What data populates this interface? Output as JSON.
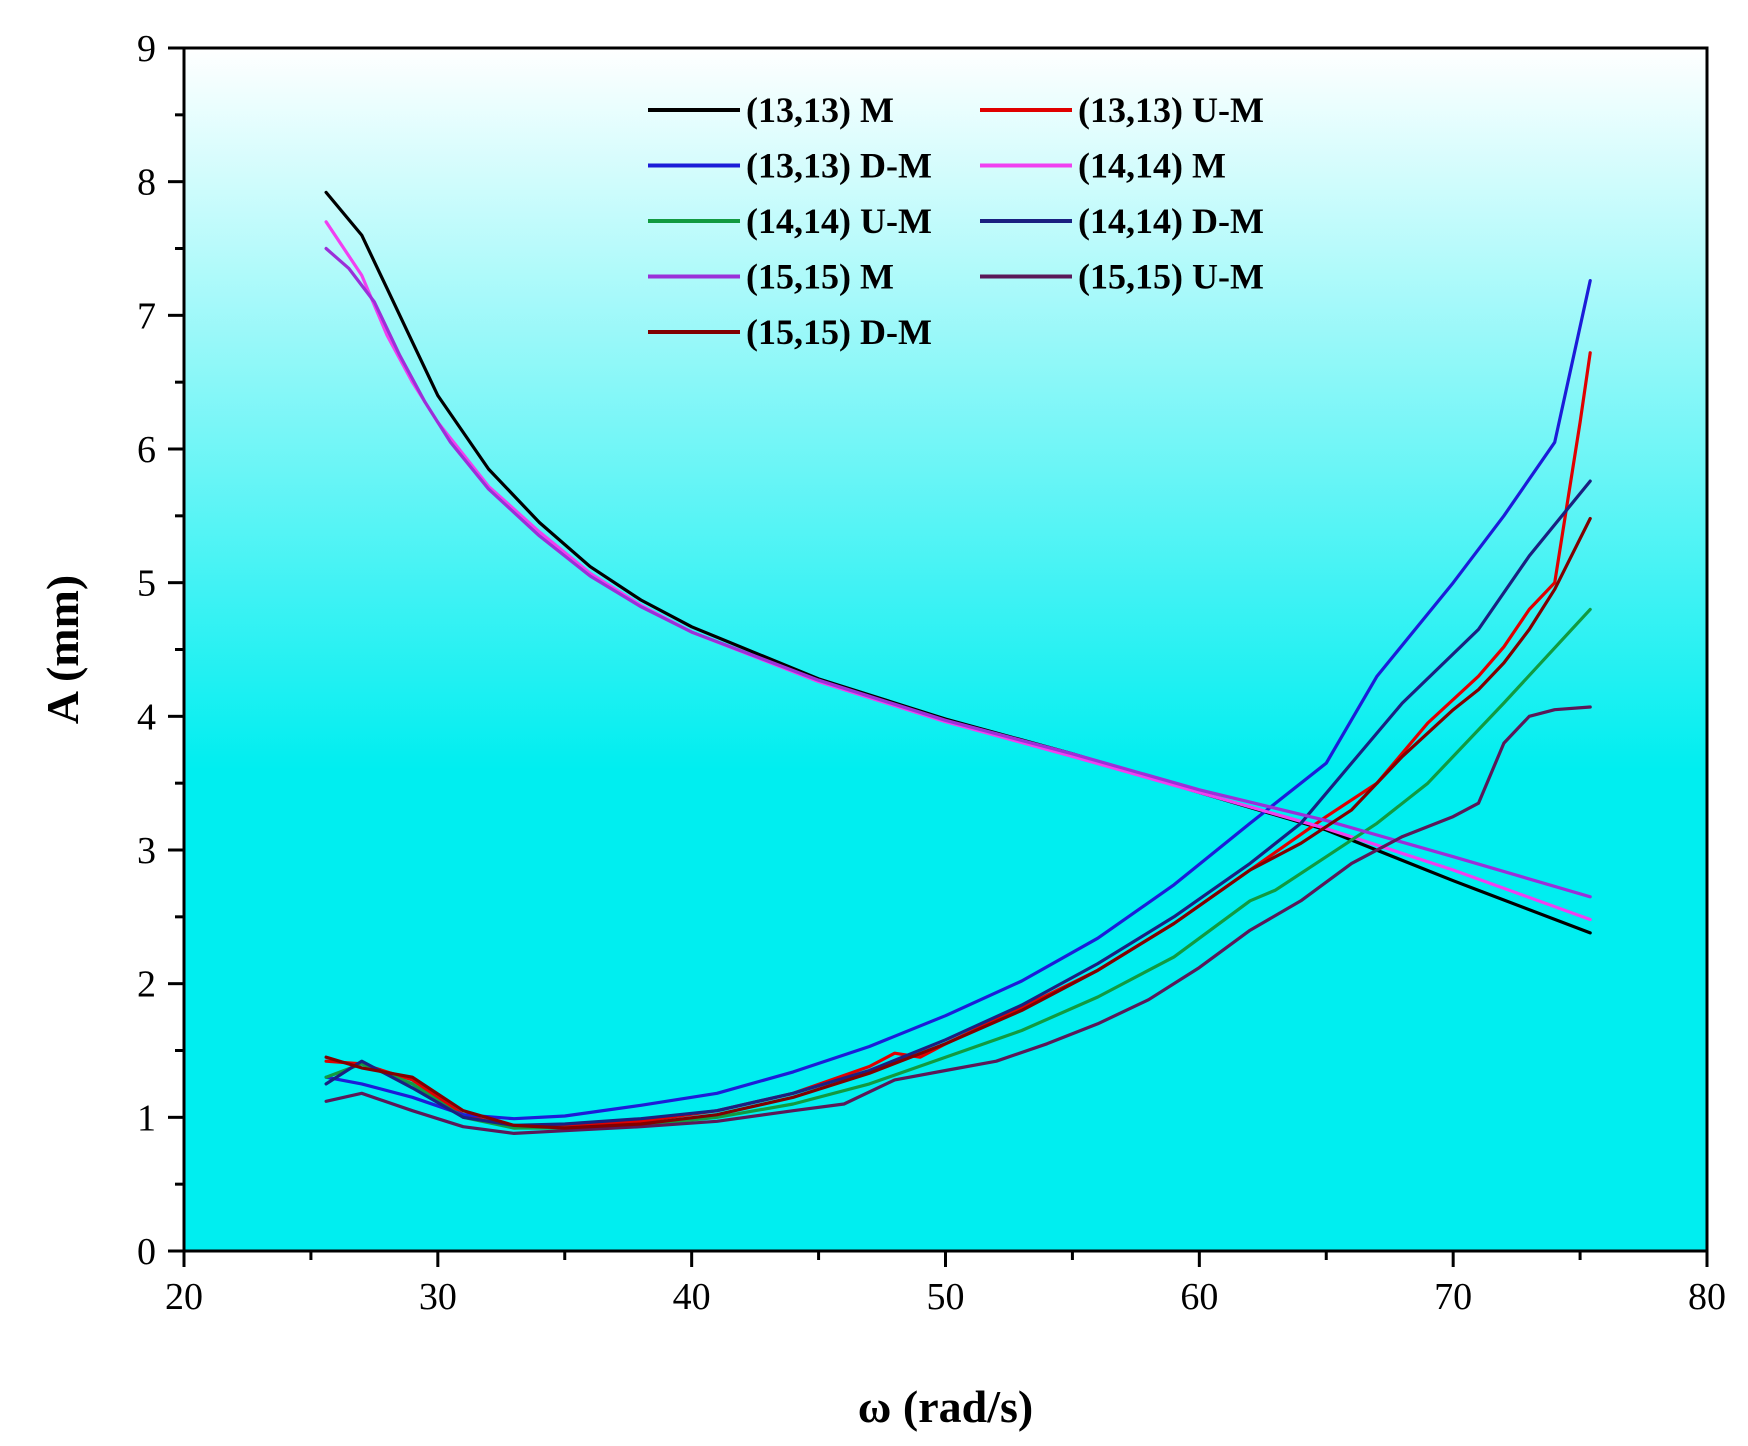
{
  "chart_data": {
    "type": "line",
    "title": "",
    "xlabel": "ω (rad/s)",
    "ylabel": "A (mm)",
    "xlim": [
      20,
      80
    ],
    "ylim": [
      0,
      9
    ],
    "xticks": [
      20,
      30,
      40,
      50,
      60,
      70,
      80
    ],
    "yticks": [
      0,
      1,
      2,
      3,
      4,
      5,
      6,
      7,
      8,
      9
    ],
    "x_minor_step": 5,
    "y_minor_step": 0.5,
    "grid": false,
    "legend_position": "top-center",
    "background_gradient": [
      "#ffffff",
      "#00eef0"
    ],
    "series": [
      {
        "name": "(13,13) M",
        "color": "#000000",
        "x": [
          25.6,
          27,
          28,
          29,
          30,
          32,
          34,
          36,
          38,
          40,
          45,
          50,
          55,
          60,
          65,
          70,
          75.4
        ],
        "y": [
          7.92,
          7.6,
          7.2,
          6.8,
          6.4,
          5.85,
          5.45,
          5.12,
          4.87,
          4.67,
          4.28,
          3.98,
          3.72,
          3.43,
          3.15,
          2.77,
          2.38
        ]
      },
      {
        "name": "(13,13) U-M",
        "color": "#e00000",
        "x": [
          25.6,
          27,
          29,
          31,
          33,
          35,
          38,
          41,
          44,
          47,
          48,
          49,
          50,
          53,
          56,
          59,
          62,
          65,
          67,
          69,
          71,
          72,
          73,
          74,
          75,
          75.4
        ],
        "y": [
          1.42,
          1.4,
          1.28,
          1.02,
          0.92,
          0.93,
          0.97,
          1.05,
          1.18,
          1.38,
          1.48,
          1.45,
          1.55,
          1.82,
          2.1,
          2.45,
          2.85,
          3.25,
          3.5,
          3.95,
          4.3,
          4.52,
          4.8,
          5.0,
          6.2,
          6.72
        ]
      },
      {
        "name": "(13,13) D-M",
        "color": "#1c1cd8",
        "x": [
          25.6,
          27,
          29,
          31,
          33,
          35,
          38,
          41,
          44,
          47,
          50,
          53,
          56,
          59,
          62,
          65,
          67,
          70,
          72,
          74,
          75.4
        ],
        "y": [
          1.3,
          1.25,
          1.15,
          1.02,
          0.99,
          1.01,
          1.09,
          1.18,
          1.34,
          1.53,
          1.76,
          2.02,
          2.34,
          2.74,
          3.2,
          3.65,
          4.3,
          5.0,
          5.5,
          6.05,
          7.26
        ]
      },
      {
        "name": "(14,14) M",
        "color": "#f040f0",
        "x": [
          25.6,
          27,
          28,
          29,
          30,
          32,
          34,
          36,
          38,
          40,
          45,
          50,
          55,
          60,
          65,
          70,
          75.4
        ],
        "y": [
          7.7,
          7.3,
          6.85,
          6.5,
          6.2,
          5.72,
          5.38,
          5.07,
          4.83,
          4.63,
          4.26,
          3.96,
          3.7,
          3.43,
          3.16,
          2.85,
          2.48
        ]
      },
      {
        "name": "(14,14) U-M",
        "color": "#129a40",
        "x": [
          25.6,
          27,
          29,
          31,
          33,
          35,
          38,
          41,
          44,
          47,
          50,
          53,
          56,
          59,
          62,
          63,
          65,
          67,
          69,
          72,
          75.4
        ],
        "y": [
          1.3,
          1.4,
          1.25,
          1.0,
          0.92,
          0.92,
          0.94,
          1.0,
          1.1,
          1.25,
          1.45,
          1.65,
          1.9,
          2.2,
          2.62,
          2.7,
          2.95,
          3.2,
          3.5,
          4.1,
          4.8
        ]
      },
      {
        "name": "(14,14) D-M",
        "color": "#1a2080",
        "x": [
          25.6,
          27,
          29,
          31,
          33,
          35,
          38,
          41,
          44,
          47,
          50,
          53,
          56,
          59,
          62,
          64,
          66,
          68,
          71,
          73,
          75.4
        ],
        "y": [
          1.25,
          1.42,
          1.22,
          1.0,
          0.94,
          0.95,
          0.99,
          1.05,
          1.18,
          1.35,
          1.58,
          1.84,
          2.15,
          2.5,
          2.9,
          3.2,
          3.65,
          4.1,
          4.65,
          5.2,
          5.76
        ]
      },
      {
        "name": "(15,15) M",
        "color": "#9a30d8",
        "x": [
          25.6,
          26.5,
          27.5,
          28.5,
          29.5,
          30.5,
          32,
          34,
          36,
          38,
          40,
          45,
          50,
          55,
          60,
          65,
          70,
          75.4
        ],
        "y": [
          7.5,
          7.35,
          7.1,
          6.7,
          6.35,
          6.05,
          5.7,
          5.35,
          5.05,
          4.82,
          4.63,
          4.27,
          3.97,
          3.72,
          3.45,
          3.22,
          2.95,
          2.65
        ]
      },
      {
        "name": "(15,15) U-M",
        "color": "#5a1858",
        "x": [
          25.6,
          27,
          29,
          31,
          33,
          35,
          38,
          41,
          44,
          46,
          48,
          50,
          52,
          54,
          56,
          58,
          60,
          62,
          64,
          66,
          68,
          70,
          71,
          72,
          73,
          74,
          75.4
        ],
        "y": [
          1.12,
          1.18,
          1.05,
          0.93,
          0.88,
          0.9,
          0.93,
          0.97,
          1.05,
          1.1,
          1.28,
          1.35,
          1.42,
          1.55,
          1.7,
          1.88,
          2.12,
          2.4,
          2.62,
          2.9,
          3.1,
          3.25,
          3.35,
          3.8,
          4.0,
          4.05,
          4.07
        ]
      },
      {
        "name": "(15,15) D-M",
        "color": "#800000",
        "x": [
          25.6,
          27,
          29,
          31,
          33,
          35,
          38,
          41,
          44,
          47,
          50,
          53,
          56,
          59,
          62,
          64,
          66,
          68,
          70,
          71,
          72,
          73,
          74,
          75.4
        ],
        "y": [
          1.45,
          1.37,
          1.3,
          1.05,
          0.94,
          0.92,
          0.95,
          1.02,
          1.15,
          1.33,
          1.55,
          1.8,
          2.1,
          2.45,
          2.85,
          3.05,
          3.3,
          3.7,
          4.05,
          4.2,
          4.4,
          4.65,
          4.95,
          5.48
        ]
      }
    ]
  }
}
